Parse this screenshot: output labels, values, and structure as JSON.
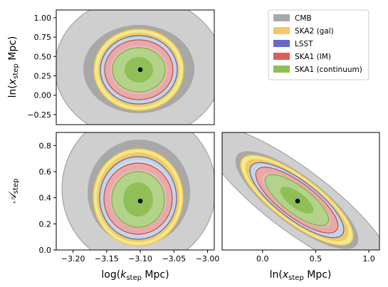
{
  "chart_data": {
    "type": "contour",
    "series": [
      {
        "name": "CMB",
        "color": "#a8a8a8",
        "outer_color": "#cfcfcf",
        "edge": "#999999"
      },
      {
        "name": "SKA2 (gal)",
        "color": "#f5c766",
        "outer_color": "#f0ea8c",
        "edge": "#f2c24e"
      },
      {
        "name": "LSST",
        "color": "#6666cc",
        "outer_color": "#c2d4e6",
        "edge": "#5566aa"
      },
      {
        "name": "SKA1 (IM)",
        "color": "#e05a5a",
        "outer_color": "#e9a9a9",
        "edge": "#c44848"
      },
      {
        "name": "SKA1 (continuum)",
        "color": "#90bf58",
        "outer_color": "#b3d38a",
        "edge": "#7fad48"
      }
    ],
    "fiducial": {
      "log_kstep": -3.1,
      "ln_xstep": 0.33,
      "A_step": 0.375
    },
    "panels": [
      {
        "id": "top-left",
        "xlim": [
          -3.225,
          -2.99
        ],
        "ylim": [
          -0.38,
          1.1
        ],
        "ylabel_pre": "ln(",
        "ylabel_var": "x",
        "ylabel_sub": "step",
        "ylabel_post": " Mpc)",
        "yticks": [
          "−0.25",
          "0.00",
          "0.25",
          "0.50",
          "0.75",
          "1.00"
        ],
        "ytick_values": [
          -0.25,
          0.0,
          0.25,
          0.5,
          0.75,
          1.0
        ]
      },
      {
        "id": "bottom-left",
        "xlim": [
          -3.225,
          -2.99
        ],
        "ylim": [
          0.0,
          0.9
        ],
        "xlabel_pre": "log(",
        "xlabel_var": "k",
        "xlabel_sub": "step",
        "xlabel_post": " Mpc)",
        "ylabel_var": "𝒜",
        "ylabel_sub": "step",
        "xticks": [
          "−3.20",
          "−3.15",
          "−3.10",
          "−3.05",
          "−3.00"
        ],
        "xtick_values": [
          -3.2,
          -3.15,
          -3.1,
          -3.05,
          -3.0
        ],
        "yticks": [
          "0.0",
          "0.2",
          "0.4",
          "0.6",
          "0.8"
        ],
        "ytick_values": [
          0.0,
          0.2,
          0.4,
          0.6,
          0.8
        ]
      },
      {
        "id": "bottom-right",
        "xlim": [
          -0.38,
          1.1
        ],
        "ylim": [
          0.0,
          0.9
        ],
        "xlabel_pre": "ln(",
        "xlabel_var": "x",
        "xlabel_sub": "step",
        "xlabel_post": " Mpc)",
        "xticks": [
          "0.0",
          "0.5",
          "1.0"
        ],
        "xtick_values": [
          0.0,
          0.5,
          1.0
        ]
      }
    ],
    "legend_position": "top-right"
  }
}
